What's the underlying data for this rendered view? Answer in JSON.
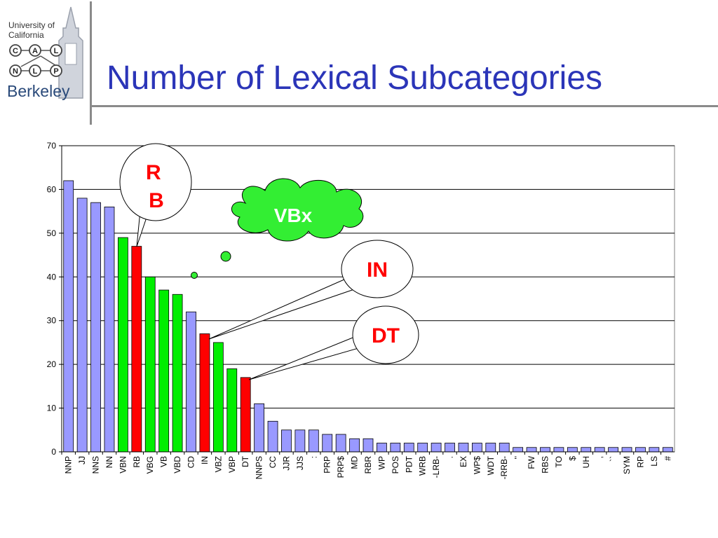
{
  "slide": {
    "title": "Number of Lexical Subcategories"
  },
  "logo": {
    "line1": "University of",
    "line2": "California",
    "letters": [
      "C",
      "A",
      "L",
      "N",
      "L",
      "P"
    ],
    "name": "Berkeley"
  },
  "colors": {
    "title": "#2b35b8",
    "bar_default": "#9999ff",
    "bar_verb": "#00ee00",
    "bar_highlight": "#ff0000",
    "cloud": "#33ee33"
  },
  "chart_data": {
    "type": "bar",
    "ylim": [
      0,
      70
    ],
    "yticks": [
      0,
      10,
      20,
      30,
      40,
      50,
      60,
      70
    ],
    "grid": true,
    "categories": [
      "NNP",
      "JJ",
      "NNS",
      "NN",
      "VBN",
      "RB",
      "VBG",
      "VB",
      "VBD",
      "CD",
      "IN",
      "VBZ",
      "VBP",
      "DT",
      "NNPS",
      "CC",
      "JJR",
      "JJS",
      ":",
      "PRP",
      "PRP$",
      "MD",
      "RBR",
      "WP",
      "POS",
      "PDT",
      "WRB",
      "-LRB-",
      ".",
      "EX",
      "WP$",
      "WDT",
      "-RRB-",
      "''",
      "FW",
      "RBS",
      "TO",
      "$",
      "UH",
      ",",
      "``",
      "SYM",
      "RP",
      "LS",
      "#"
    ],
    "values": [
      62,
      58,
      57,
      56,
      49,
      47,
      40,
      37,
      36,
      32,
      27,
      25,
      19,
      17,
      11,
      7,
      5,
      5,
      5,
      4,
      4,
      3,
      3,
      2,
      2,
      2,
      2,
      2,
      2,
      2,
      2,
      2,
      2,
      1,
      1,
      1,
      1,
      1,
      1,
      1,
      1,
      1,
      1,
      1,
      1
    ],
    "groups": [
      "default",
      "default",
      "default",
      "default",
      "verb",
      "highlight",
      "verb",
      "verb",
      "verb",
      "default",
      "highlight",
      "verb",
      "verb",
      "highlight",
      "default",
      "default",
      "default",
      "default",
      "default",
      "default",
      "default",
      "default",
      "default",
      "default",
      "default",
      "default",
      "default",
      "default",
      "default",
      "default",
      "default",
      "default",
      "default",
      "default",
      "default",
      "default",
      "default",
      "default",
      "default",
      "default",
      "default",
      "default",
      "default",
      "default",
      "default"
    ],
    "annotations": {
      "rb": "R\nB",
      "vbx": "VBx",
      "in": "IN",
      "dt": "DT"
    }
  }
}
